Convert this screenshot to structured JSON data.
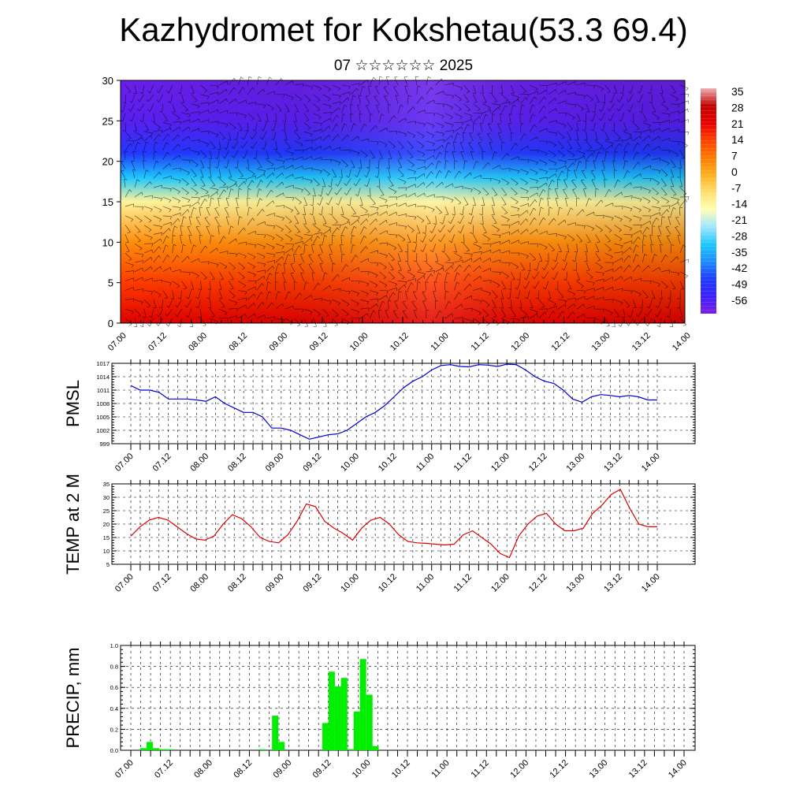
{
  "title": "Kazhydromet for Kokshetau(53.3 69.4)",
  "subtitle": "07 ☆☆☆☆☆☆ 2025",
  "time_labels": [
    "07.00",
    "07.12",
    "08.00",
    "08.12",
    "09.00",
    "09.12",
    "10.00",
    "10.12",
    "11.00",
    "11.12",
    "12.00",
    "12.12",
    "13.00",
    "13.12",
    "14.00"
  ],
  "colors": {
    "pmsl_line": "#0000cc",
    "temp_line": "#dd0000",
    "precip_bar": "#00ee00"
  },
  "chart_data": [
    {
      "type": "heatmap",
      "title": "",
      "xlabel": "",
      "ylabel": "",
      "x_ticks": [
        "07.00",
        "07.12",
        "08.00",
        "08.12",
        "09.00",
        "09.12",
        "10.00",
        "10.12",
        "11.00",
        "11.12",
        "12.00",
        "12.12",
        "13.00",
        "13.12",
        "14.00"
      ],
      "ylim": [
        0,
        30
      ],
      "y_ticks": [
        0,
        5,
        10,
        15,
        20,
        25,
        30
      ],
      "colorbar_ticks": [
        35,
        28,
        21,
        14,
        7,
        0,
        -7,
        -14,
        -21,
        -28,
        -35,
        -42,
        -49,
        -56
      ],
      "colorbar_range": [
        -60,
        38
      ],
      "colorbar_colors": [
        "#7a1fe0",
        "#3b1fff",
        "#1e3cff",
        "#1e8cff",
        "#1ec8ff",
        "#a0e6ff",
        "#ffffb4",
        "#ffe070",
        "#ffb020",
        "#ff7a00",
        "#ff4000",
        "#e80000",
        "#c00000",
        "#f0b0b0"
      ],
      "overlay": "wind barbs",
      "profile_at_start": [
        {
          "height": 0,
          "value": 24
        },
        {
          "height": 5,
          "value": 16
        },
        {
          "height": 10,
          "value": 5
        },
        {
          "height": 15,
          "value": -12
        },
        {
          "height": 18,
          "value": -30
        },
        {
          "height": 21,
          "value": -46
        },
        {
          "height": 25,
          "value": -56
        },
        {
          "height": 30,
          "value": -58
        }
      ]
    },
    {
      "type": "line",
      "ylabel": "PMSL",
      "ylim": [
        999,
        1017
      ],
      "y_ticks": [
        999,
        1002,
        1005,
        1008,
        1011,
        1014,
        1017
      ],
      "x_ticks": [
        "07.00",
        "07.12",
        "08.00",
        "08.12",
        "09.00",
        "09.12",
        "10.00",
        "10.12",
        "11.00",
        "11.12",
        "12.00",
        "12.12",
        "13.00",
        "13.12",
        "14.00"
      ],
      "series": [
        {
          "values": [
            1012,
            1011,
            1011,
            1010.5,
            1009,
            1009,
            1009,
            1008.8,
            1008.5,
            1009.5,
            1008,
            1007,
            1006,
            1006,
            1005,
            1002.5,
            1002.5,
            1002,
            1001,
            1000,
            1000.5,
            1001,
            1001.2,
            1002,
            1003.5,
            1005,
            1006,
            1007.5,
            1009.5,
            1011.5,
            1013,
            1014,
            1015.5,
            1016.5,
            1016.7,
            1016.3,
            1016.2,
            1016.7,
            1016.6,
            1016.3,
            1016.8,
            1016.7,
            1015.5,
            1014,
            1013,
            1012.5,
            1011,
            1009,
            1008.3,
            1009.5,
            1010,
            1009.8,
            1009.5,
            1009.8,
            1009.5,
            1008.8,
            1008.8
          ]
        }
      ]
    },
    {
      "type": "line",
      "ylabel": "TEMP at 2 M",
      "ylim": [
        5,
        35
      ],
      "y_ticks": [
        5,
        10,
        15,
        20,
        25,
        30,
        35
      ],
      "x_ticks": [
        "07.00",
        "07.12",
        "08.00",
        "08.12",
        "09.00",
        "09.12",
        "10.00",
        "10.12",
        "11.00",
        "11.12",
        "12.00",
        "12.12",
        "13.00",
        "13.12",
        "14.00"
      ],
      "series": [
        {
          "values": [
            15.5,
            19,
            21.5,
            22.5,
            21.5,
            19,
            16.5,
            14.5,
            14,
            15.5,
            20,
            23.5,
            22,
            19,
            15,
            13.5,
            13,
            16,
            21,
            27.5,
            26.5,
            21,
            18.5,
            16.5,
            14,
            18.5,
            21.5,
            22.5,
            20,
            16,
            13.5,
            13,
            12.8,
            12.5,
            12.2,
            12.5,
            16,
            17.5,
            15,
            12.5,
            9,
            7.5,
            15.5,
            20,
            23,
            24,
            20,
            17.5,
            17.5,
            18.5,
            24,
            27,
            31,
            33,
            26,
            20,
            19,
            19
          ]
        }
      ]
    },
    {
      "type": "bar",
      "ylabel": "PRECIP, mm",
      "ylim": [
        0,
        1.0
      ],
      "y_ticks": [
        0.0,
        0.2,
        0.4,
        0.6,
        0.8,
        1.0
      ],
      "x_ticks": [
        "07.00",
        "07.12",
        "08.00",
        "08.12",
        "09.00",
        "09.12",
        "10.00",
        "10.12",
        "11.00",
        "11.12",
        "12.00",
        "12.12",
        "13.00",
        "13.12",
        "14.00"
      ],
      "series": [
        {
          "values": [
            0,
            0,
            0.02,
            0.08,
            0.02,
            0.01,
            0.01,
            0,
            0,
            0,
            0,
            0,
            0,
            0,
            0,
            0,
            0,
            0,
            0,
            0,
            0,
            0.01,
            0,
            0.33,
            0.08,
            0,
            0,
            0,
            0,
            0,
            0,
            0.26,
            0.75,
            0.61,
            0.69,
            0.01,
            0.37,
            0.87,
            0.53,
            0.04,
            0,
            0,
            0,
            0,
            0,
            0,
            0,
            0,
            0,
            0,
            0,
            0,
            0,
            0,
            0,
            0,
            0,
            0
          ]
        }
      ]
    }
  ]
}
